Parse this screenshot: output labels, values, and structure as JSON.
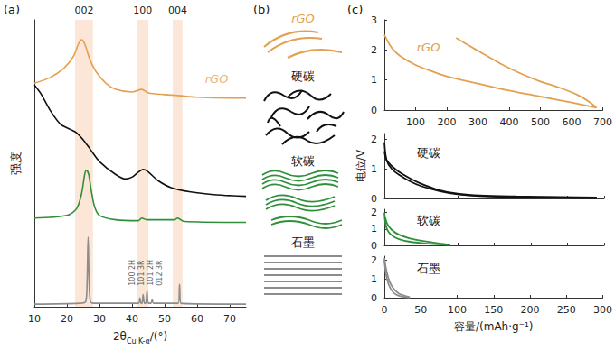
{
  "chart_data": [
    {
      "panel": "(a)",
      "type": "line",
      "xlabel": {
        "main": "2θ",
        "sub": "Cu K-α",
        "unit": "/(°)"
      },
      "ylabel": "强度",
      "xlim": [
        10,
        75
      ],
      "xticks": [
        10,
        20,
        30,
        40,
        50,
        60,
        70
      ],
      "ylim": [
        0,
        330
      ],
      "tick_labels": "x",
      "series": [
        {
          "name": "rGO",
          "color": "#e3a04f",
          "values": [
            [
              10,
              257
            ],
            [
              15,
              264
            ],
            [
              19,
              274
            ],
            [
              22,
              288
            ],
            [
              23.5,
              302
            ],
            [
              24.5,
              307
            ],
            [
              25.5,
              302
            ],
            [
              27,
              285
            ],
            [
              29,
              270
            ],
            [
              32,
              257
            ],
            [
              35,
              250
            ],
            [
              40,
              247
            ],
            [
              43,
              250
            ],
            [
              45,
              246
            ],
            [
              50,
              244
            ],
            [
              54,
              243
            ],
            [
              60,
              241
            ],
            [
              70,
              240
            ],
            [
              75,
              240
            ]
          ]
        },
        {
          "name": "硬碳",
          "color": "#111111",
          "values": [
            [
              10,
              255
            ],
            [
              12,
              245
            ],
            [
              15,
              225
            ],
            [
              18,
              210
            ],
            [
              21,
              204
            ],
            [
              23,
              200
            ],
            [
              25,
              192
            ],
            [
              27,
              182
            ],
            [
              30,
              167
            ],
            [
              35,
              152
            ],
            [
              38,
              147
            ],
            [
              40,
              149
            ],
            [
              42,
              155
            ],
            [
              43.5,
              158
            ],
            [
              45,
              155
            ],
            [
              48,
              145
            ],
            [
              52,
              137
            ],
            [
              58,
              132
            ],
            [
              65,
              129
            ],
            [
              75,
              127
            ]
          ]
        },
        {
          "name": "软碳",
          "color": "#2f8f3a",
          "values": [
            [
              10,
              102
            ],
            [
              20,
              105
            ],
            [
              23,
              113
            ],
            [
              24.5,
              130
            ],
            [
              25.5,
              153
            ],
            [
              26,
              157
            ],
            [
              26.7,
              152
            ],
            [
              27.5,
              133
            ],
            [
              28.5,
              115
            ],
            [
              30,
              105
            ],
            [
              35,
              100
            ],
            [
              42,
              99
            ],
            [
              43,
              102
            ],
            [
              44.5,
              100
            ],
            [
              53,
              100
            ],
            [
              54,
              102
            ],
            [
              56,
              98
            ],
            [
              75,
              97
            ]
          ]
        },
        {
          "name": "石墨",
          "color": "#8c8c8c",
          "values": [
            [
              10,
              3
            ],
            [
              24,
              4
            ],
            [
              25.8,
              6
            ],
            [
              26.2,
              30
            ],
            [
              26.5,
              80
            ],
            [
              26.8,
              30
            ],
            [
              27.2,
              6
            ],
            [
              28,
              4
            ],
            [
              42,
              4
            ],
            [
              42.4,
              10
            ],
            [
              42.8,
              4
            ],
            [
              43.1,
              4
            ],
            [
              43.4,
              14
            ],
            [
              43.8,
              4
            ],
            [
              44.2,
              4
            ],
            [
              44.6,
              18
            ],
            [
              45,
              4
            ],
            [
              45.8,
              4
            ],
            [
              46.2,
              8
            ],
            [
              46.6,
              4
            ],
            [
              54.2,
              4
            ],
            [
              54.6,
              26
            ],
            [
              55,
              4
            ],
            [
              75,
              3
            ]
          ]
        }
      ],
      "bands": [
        {
          "label": "002",
          "range": [
            22.5,
            28
          ]
        },
        {
          "label": "100",
          "range": [
            41.5,
            45
          ]
        },
        {
          "label": "004",
          "range": [
            52.5,
            55.5
          ]
        }
      ],
      "peak_labels": [
        {
          "text": "100 2H",
          "x": 40.2,
          "y": 22
        },
        {
          "text": "101 3R",
          "x": 43.0,
          "y": 22
        },
        {
          "text": "101 2H",
          "x": 45.8,
          "y": 22
        },
        {
          "text": "012 3R",
          "x": 48.6,
          "y": 22
        }
      ],
      "annotations": [
        {
          "text": "rGO",
          "x": 66,
          "y": 262
        }
      ]
    },
    {
      "panel": "(c)",
      "type": "line",
      "title": "rGO",
      "xlim": [
        0,
        700
      ],
      "xticks": [
        100,
        200,
        300,
        400,
        500,
        600,
        700
      ],
      "ylim": [
        0,
        3
      ],
      "yticks": [
        0,
        1,
        2,
        3
      ],
      "series": [
        {
          "color": "#e3a04f",
          "values": [
            [
              0,
              2.5
            ],
            [
              10,
              2.3
            ],
            [
              25,
              2.05
            ],
            [
              50,
              1.8
            ],
            [
              100,
              1.5
            ],
            [
              150,
              1.3
            ],
            [
              200,
              1.12
            ],
            [
              300,
              0.88
            ],
            [
              400,
              0.65
            ],
            [
              500,
              0.45
            ],
            [
              600,
              0.25
            ],
            [
              680,
              0.08
            ]
          ]
        },
        {
          "color": "#e3a04f",
          "values": [
            [
              680,
              0.08
            ],
            [
              660,
              0.25
            ],
            [
              620,
              0.5
            ],
            [
              560,
              0.75
            ],
            [
              500,
              0.95
            ],
            [
              440,
              1.2
            ],
            [
              380,
              1.5
            ],
            [
              320,
              1.85
            ],
            [
              270,
              2.15
            ],
            [
              230,
              2.4
            ]
          ]
        }
      ]
    },
    {
      "type": "line",
      "title": "硬碳",
      "ylabel": "电位/V",
      "xlim": [
        0,
        300
      ],
      "xticks": [
        0,
        50,
        100,
        150,
        200,
        250,
        300
      ],
      "ylim": [
        0,
        2.2
      ],
      "yticks": [
        0,
        1,
        2
      ],
      "tick_labels": "y",
      "series": [
        {
          "color": "#111111",
          "values": [
            [
              0,
              1.9
            ],
            [
              3,
              1.3
            ],
            [
              10,
              1.0
            ],
            [
              20,
              0.8
            ],
            [
              35,
              0.58
            ],
            [
              50,
              0.42
            ],
            [
              75,
              0.25
            ],
            [
              100,
              0.14
            ],
            [
              130,
              0.08
            ],
            [
              180,
              0.05
            ],
            [
              240,
              0.03
            ],
            [
              290,
              0.01
            ]
          ]
        },
        {
          "color": "#111111",
          "values": [
            [
              290,
              0.03
            ],
            [
              240,
              0.05
            ],
            [
              180,
              0.07
            ],
            [
              130,
              0.1
            ],
            [
              100,
              0.16
            ],
            [
              75,
              0.28
            ],
            [
              50,
              0.5
            ],
            [
              35,
              0.68
            ],
            [
              20,
              0.9
            ],
            [
              10,
              1.1
            ],
            [
              3,
              1.3
            ],
            [
              0,
              1.6
            ]
          ]
        }
      ]
    },
    {
      "type": "line",
      "title": "软碳",
      "xlim": [
        0,
        300
      ],
      "xticks": [
        0,
        50,
        100,
        150,
        200,
        250,
        300
      ],
      "ylim": [
        0,
        2.2
      ],
      "yticks": [
        0,
        1,
        2
      ],
      "tick_labels": "y",
      "series": [
        {
          "color": "#2f8f3a",
          "values": [
            [
              0,
              2.0
            ],
            [
              2,
              1.2
            ],
            [
              6,
              0.8
            ],
            [
              12,
              0.55
            ],
            [
              20,
              0.38
            ],
            [
              35,
              0.22
            ],
            [
              55,
              0.12
            ],
            [
              75,
              0.06
            ],
            [
              90,
              0.02
            ]
          ]
        },
        {
          "color": "#2f8f3a",
          "values": [
            [
              90,
              0.04
            ],
            [
              75,
              0.12
            ],
            [
              55,
              0.25
            ],
            [
              35,
              0.42
            ],
            [
              20,
              0.65
            ],
            [
              10,
              0.95
            ],
            [
              4,
              1.3
            ],
            [
              1,
              1.7
            ]
          ]
        }
      ]
    },
    {
      "type": "line",
      "title": "石墨",
      "xlabel": "容量/(mAh·g⁻¹)",
      "xlim": [
        0,
        300
      ],
      "xticks": [
        0,
        50,
        100,
        150,
        200,
        250,
        300
      ],
      "ylim": [
        0,
        2.2
      ],
      "yticks": [
        0,
        1,
        2
      ],
      "series": [
        {
          "color": "#8c8c8c",
          "values": [
            [
              0,
              2.0
            ],
            [
              2,
              1.3
            ],
            [
              5,
              0.8
            ],
            [
              9,
              0.45
            ],
            [
              14,
              0.22
            ],
            [
              20,
              0.1
            ],
            [
              28,
              0.03
            ],
            [
              35,
              0.01
            ]
          ]
        },
        {
          "color": "#8c8c8c",
          "values": [
            [
              35,
              0.03
            ],
            [
              28,
              0.1
            ],
            [
              20,
              0.22
            ],
            [
              14,
              0.42
            ],
            [
              9,
              0.7
            ],
            [
              5,
              1.1
            ],
            [
              2,
              1.6
            ],
            [
              0,
              2.1
            ]
          ]
        }
      ]
    }
  ],
  "schematic": {
    "panel": "(b)",
    "items": [
      {
        "text": "rGO",
        "color": "#e3a04f"
      },
      {
        "text": "硬碳",
        "color": "#111111"
      },
      {
        "text": "软碳",
        "color": "#2f8f3a"
      },
      {
        "text": "石墨",
        "color": "#8c8c8c"
      }
    ]
  }
}
